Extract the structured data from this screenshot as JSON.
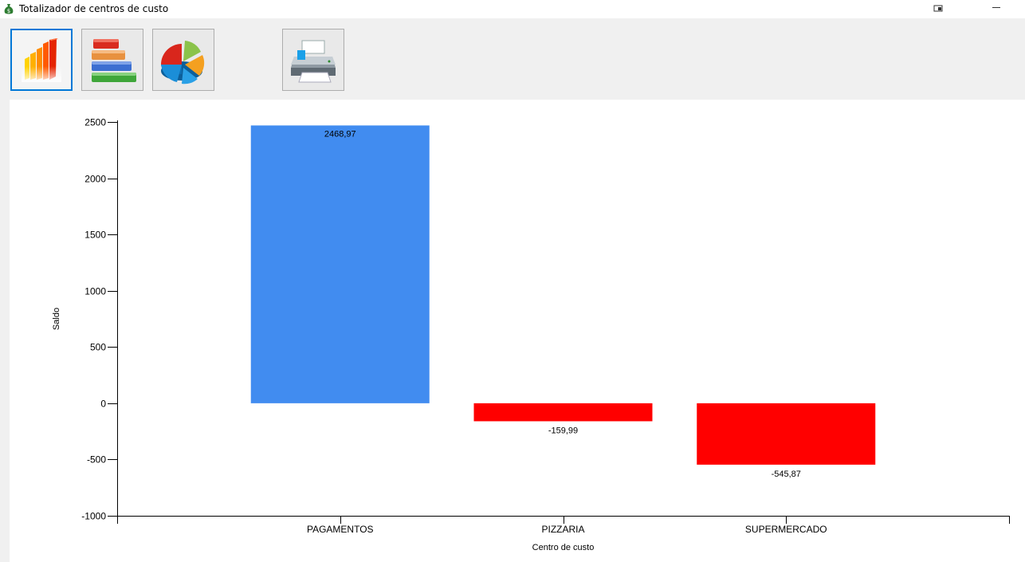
{
  "window": {
    "title": "Totalizador de centros de custo",
    "icon": "money-bag-icon"
  },
  "toolbar": {
    "buttons": [
      {
        "name": "bar-chart-button",
        "icon": "bar-chart-icon",
        "active": true
      },
      {
        "name": "stacked-chart-button",
        "icon": "stacked-bars-icon",
        "active": false
      },
      {
        "name": "pie-chart-button",
        "icon": "pie-chart-icon",
        "active": false
      },
      {
        "name": "print-button",
        "icon": "printer-icon",
        "active": false
      }
    ]
  },
  "colors": {
    "positive": "#418cf0",
    "negative": "#ff0000",
    "active_border": "#0078d7"
  },
  "chart_data": {
    "type": "bar",
    "title": "",
    "xlabel": "Centro de custo",
    "ylabel": "Saldo",
    "categories": [
      "PAGAMENTOS",
      "PIZZARIA",
      "SUPERMERCADO"
    ],
    "values": [
      2468.97,
      -159.99,
      -545.87
    ],
    "value_labels": [
      "2468,97",
      "-159,99",
      "-545,87"
    ],
    "ylim": [
      -1000,
      2500
    ],
    "yticks": [
      2500,
      2000,
      1500,
      1000,
      500,
      0,
      -500,
      -1000
    ],
    "ytick_labels": [
      "2500",
      "2000",
      "1500",
      "1000",
      "500",
      "0",
      "-500",
      "-1000"
    ],
    "grid": false,
    "legend": "none"
  }
}
